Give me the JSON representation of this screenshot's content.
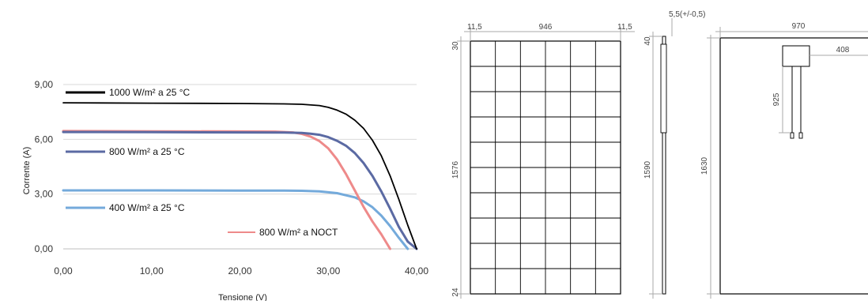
{
  "chart_data": {
    "type": "line",
    "xlabel": "Tensione (V)",
    "ylabel": "Corrente (A)",
    "xlim": [
      0,
      40
    ],
    "ylim": [
      0,
      9
    ],
    "x_ticks": [
      "0,00",
      "10,00",
      "20,00",
      "30,00",
      "40,00"
    ],
    "y_ticks": [
      "0,00",
      "3,00",
      "6,00",
      "9,00"
    ],
    "grid": "horizontal",
    "series": [
      {
        "name": "1000 W/m² a 25 °C",
        "color": "#000000",
        "x": [
          0,
          10,
          20,
          25,
          27,
          29,
          30,
          31,
          32,
          33,
          34,
          35,
          36,
          37,
          38,
          39,
          40
        ],
        "y": [
          8.0,
          7.98,
          7.96,
          7.94,
          7.92,
          7.85,
          7.75,
          7.6,
          7.38,
          7.05,
          6.6,
          5.95,
          5.1,
          4.0,
          2.7,
          1.3,
          0
        ]
      },
      {
        "name": "800 W/m² a 25 °C",
        "color": "#5b6aa3",
        "x": [
          0,
          10,
          20,
          25,
          27,
          28,
          29,
          30,
          31,
          32,
          33,
          34,
          35,
          36,
          37,
          38,
          39,
          40
        ],
        "y": [
          6.4,
          6.39,
          6.38,
          6.37,
          6.35,
          6.31,
          6.25,
          6.12,
          5.92,
          5.65,
          5.25,
          4.7,
          4.0,
          3.15,
          2.2,
          1.2,
          0.4,
          0
        ]
      },
      {
        "name": "400 W/m² a 25 °C",
        "color": "#74aadb",
        "x": [
          0,
          10,
          20,
          25,
          27,
          29,
          31,
          33,
          34,
          35,
          36,
          37,
          38,
          39
        ],
        "y": [
          3.2,
          3.2,
          3.19,
          3.19,
          3.18,
          3.15,
          3.05,
          2.82,
          2.6,
          2.28,
          1.82,
          1.25,
          0.6,
          0
        ]
      },
      {
        "name": "800 W/m² a NOCT",
        "color": "#ee8a8a",
        "x": [
          0,
          10,
          20,
          24,
          26,
          27,
          28,
          29,
          30,
          31,
          32,
          33,
          34,
          35,
          36,
          37
        ],
        "y": [
          6.45,
          6.44,
          6.43,
          6.42,
          6.38,
          6.3,
          6.15,
          5.9,
          5.5,
          4.9,
          4.1,
          3.2,
          2.3,
          1.5,
          0.8,
          0
        ]
      }
    ]
  },
  "drawings": {
    "front": {
      "width_labels": [
        "11,5",
        "946",
        "11,5"
      ],
      "height_labels": [
        "30",
        "1576",
        "24"
      ],
      "grid_columns": 6,
      "grid_rows": 10
    },
    "side": {
      "thickness_label": "5,5(+/-0,5)",
      "top_label": "40",
      "height_label": "1590"
    },
    "back": {
      "width_label": "970",
      "box_offset_label": "408",
      "cable_label": "925",
      "height_label": "1630"
    }
  }
}
